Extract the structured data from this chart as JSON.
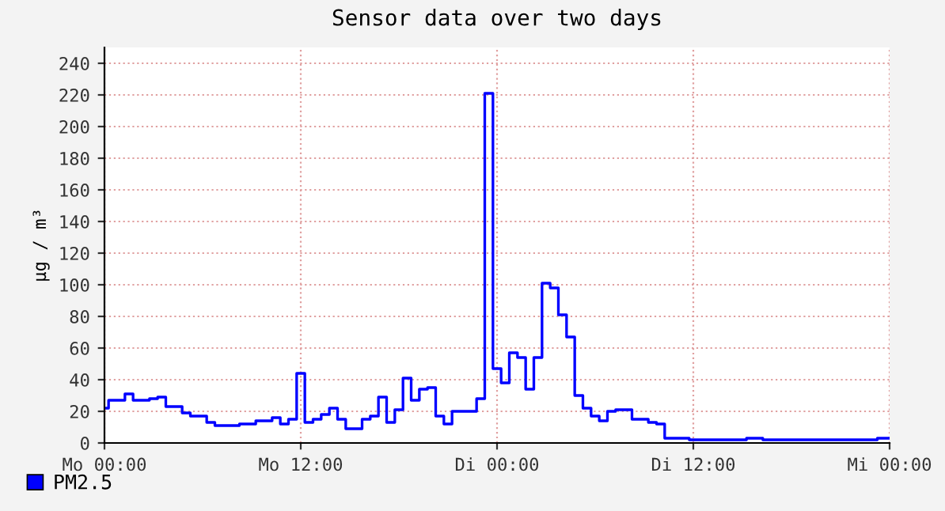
{
  "chart_data": {
    "type": "step",
    "title": "Sensor data over two days",
    "ylabel": "µg / m³",
    "categories": [
      "Mo 00:00",
      null,
      null,
      null,
      null,
      null,
      null,
      null,
      null,
      null,
      null,
      null,
      null,
      null,
      null,
      null,
      null,
      null,
      null,
      null,
      null,
      null,
      null,
      null,
      "Mo 12:00",
      null,
      null,
      null,
      null,
      null,
      null,
      null,
      null,
      null,
      null,
      null,
      null,
      null,
      null,
      null,
      null,
      null,
      null,
      null,
      null,
      null,
      null,
      null,
      "Di 00:00",
      null,
      null,
      null,
      null,
      null,
      null,
      null,
      null,
      null,
      null,
      null,
      null,
      null,
      null,
      null,
      null,
      null,
      null,
      null,
      null,
      null,
      null,
      null,
      "Di 12:00",
      null,
      null,
      null,
      null,
      null,
      null,
      null,
      null,
      null,
      null,
      null,
      null,
      null,
      null,
      null,
      null,
      null,
      null,
      null,
      null,
      null,
      null,
      null,
      "Mi 00:00"
    ],
    "series": [
      {
        "name": "PM2.5",
        "color": "#0000ff",
        "values": [
          22,
          27,
          27,
          31,
          27,
          27,
          28,
          29,
          23,
          23,
          19,
          17,
          17,
          13,
          11,
          11,
          11,
          12,
          12,
          14,
          14,
          16,
          12,
          15,
          44,
          13,
          15,
          18,
          22,
          15,
          9,
          9,
          15,
          17,
          29,
          13,
          21,
          41,
          27,
          34,
          35,
          17,
          12,
          20,
          20,
          20,
          28,
          221,
          47,
          38,
          57,
          54,
          34,
          54,
          101,
          98,
          81,
          67,
          30,
          22,
          17,
          14,
          20,
          21,
          21,
          15,
          15,
          13,
          12,
          3,
          3,
          3,
          2,
          2,
          2,
          2,
          2,
          2,
          2,
          3,
          3,
          2,
          2,
          2,
          2,
          2,
          2,
          2,
          2,
          2,
          2,
          2,
          2,
          2,
          2,
          3,
          3
        ]
      }
    ],
    "ylim": [
      0,
      250
    ],
    "yticks": [
      0,
      20,
      40,
      60,
      80,
      100,
      120,
      140,
      160,
      180,
      200,
      220,
      240
    ],
    "grid": true,
    "legend": "bottom left"
  }
}
